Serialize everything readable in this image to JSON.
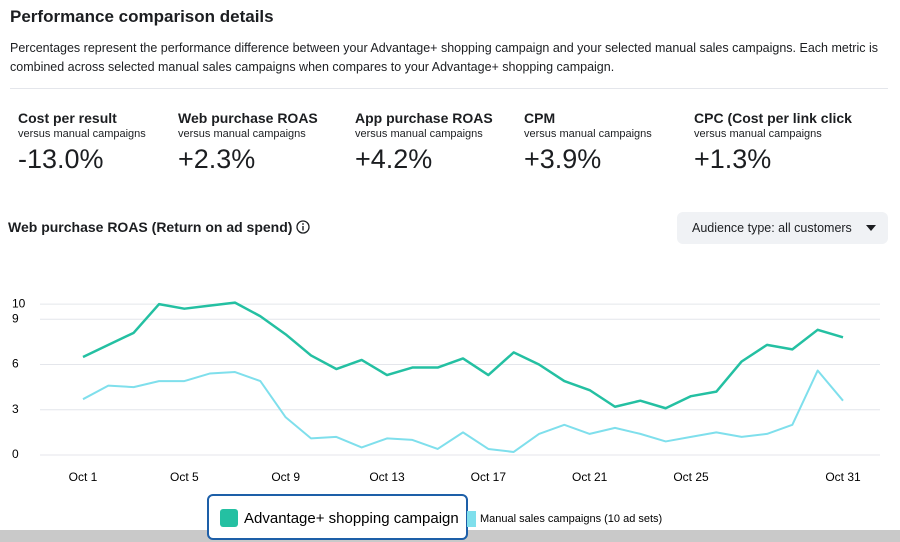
{
  "header": {
    "title": "Performance comparison details",
    "description": "Percentages represent the performance difference between your Advantage+ shopping campaign and your selected manual sales campaigns. Each metric is combined across selected manual sales campaigns when compares to your Advantage+ shopping campaign."
  },
  "metrics": [
    {
      "title": "Cost per result",
      "subtitle": "versus manual campaigns",
      "value": "-13.0%"
    },
    {
      "title": "Web purchase ROAS",
      "subtitle": "versus manual campaigns",
      "value": "+2.3%"
    },
    {
      "title": "App purchase ROAS",
      "subtitle": "versus manual campaigns",
      "value": "+4.2%"
    },
    {
      "title": "CPM",
      "subtitle": "versus manual campaigns",
      "value": "+3.9%"
    },
    {
      "title": "CPC (Cost per link click",
      "subtitle": "versus manual campaigns",
      "value": "+1.3%"
    }
  ],
  "dropdown": {
    "label": "Audience type: all customers"
  },
  "chart_data": {
    "type": "line",
    "title": "Web purchase ROAS (Return on ad spend)",
    "categories": [
      "Oct 1",
      null,
      null,
      null,
      "Oct 5",
      null,
      null,
      null,
      "Oct 9",
      null,
      null,
      null,
      "Oct 13",
      null,
      null,
      null,
      "Oct 17",
      null,
      null,
      null,
      "Oct 21",
      null,
      null,
      null,
      "Oct 25",
      null,
      null,
      null,
      null,
      null,
      "Oct 31"
    ],
    "series": [
      {
        "name": "Advantage+ shopping campaign",
        "color": "#24c0a2",
        "values": [
          6.5,
          7.3,
          8.1,
          10,
          9.7,
          9.9,
          10.1,
          9.2,
          8.0,
          6.6,
          5.7,
          6.3,
          5.3,
          5.8,
          5.8,
          6.4,
          5.3,
          6.8,
          6.0,
          4.9,
          4.3,
          3.2,
          3.6,
          3.1,
          3.9,
          4.2,
          6.2,
          7.3,
          7.0,
          8.3,
          7.8
        ]
      },
      {
        "name": "Manual sales campaigns (10 ad sets)",
        "color": "#7fdfec",
        "values": [
          3.7,
          4.6,
          4.5,
          4.9,
          4.9,
          5.4,
          5.5,
          4.9,
          2.5,
          1.1,
          1.2,
          0.5,
          1.1,
          1.0,
          0.4,
          1.5,
          0.4,
          0.2,
          1.4,
          2.0,
          1.4,
          1.8,
          1.4,
          0.9,
          1.2,
          1.5,
          1.2,
          1.4,
          2.0,
          5.6,
          3.6
        ]
      }
    ],
    "ylim": [
      0,
      12
    ],
    "yticks": [
      0,
      3,
      6,
      9,
      10
    ],
    "grid": true
  }
}
